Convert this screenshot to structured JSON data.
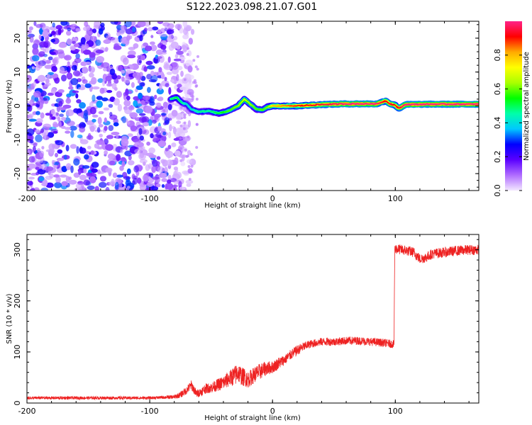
{
  "figure_title": "S122.2023.098.21.07.G01",
  "colors": {
    "snr_line": "#ee2222",
    "spectrogram_noise": "#7a1ee8",
    "frame": "#000000"
  },
  "chart_data": [
    {
      "type": "heatmap",
      "title": "",
      "xlabel": "Height of straight line (km)",
      "ylabel": "Frequency (Hz)",
      "xlim": [
        -200,
        168
      ],
      "ylim": [
        -25,
        25
      ],
      "xticks": [
        "-200",
        "-100",
        "0",
        "100"
      ],
      "yticks": [
        "20",
        "10",
        "0",
        "-10",
        "-20"
      ],
      "colorbar": {
        "label": "Normalized spectral amplitude",
        "range": [
          0.0,
          1.0
        ],
        "ticks": [
          "0.0",
          "0.2",
          "0.4",
          "0.6",
          "0.8"
        ],
        "colormap": [
          "#f3e8ff",
          "#b06cff",
          "#5a00ff",
          "#0000ff",
          "#00c8ff",
          "#00ffaa",
          "#00ff00",
          "#aaff00",
          "#ffff00",
          "#ffaa00",
          "#ff0000",
          "#ff2288"
        ]
      },
      "noise_region": {
        "x_range": [
          -200,
          -65
        ],
        "y_range": [
          -25,
          25
        ],
        "amplitude_range": [
          0.05,
          0.35
        ]
      },
      "signal_track": {
        "points": [
          {
            "x": -83,
            "y": 2.0
          },
          {
            "x": -78,
            "y": 2.5
          },
          {
            "x": -74,
            "y": 1.0
          },
          {
            "x": -70,
            "y": 0.5
          },
          {
            "x": -66,
            "y": -1.0
          },
          {
            "x": -60,
            "y": -1.8
          },
          {
            "x": -52,
            "y": -1.5
          },
          {
            "x": -44,
            "y": -2.2
          },
          {
            "x": -36,
            "y": -1.5
          },
          {
            "x": -28,
            "y": 0.0
          },
          {
            "x": -23,
            "y": 2.0
          },
          {
            "x": -18,
            "y": 0.5
          },
          {
            "x": -13,
            "y": -1.0
          },
          {
            "x": -8,
            "y": -1.2
          },
          {
            "x": -4,
            "y": -0.3
          },
          {
            "x": 0,
            "y": 0.0
          },
          {
            "x": 20,
            "y": 0.0
          },
          {
            "x": 40,
            "y": 0.4
          },
          {
            "x": 60,
            "y": 0.6
          },
          {
            "x": 85,
            "y": 0.6
          },
          {
            "x": 92,
            "y": 1.5
          },
          {
            "x": 96,
            "y": 0.6
          },
          {
            "x": 100,
            "y": 0.2
          },
          {
            "x": 103,
            "y": -0.8
          },
          {
            "x": 108,
            "y": 0.4
          },
          {
            "x": 130,
            "y": 0.5
          },
          {
            "x": 168,
            "y": 0.5
          }
        ],
        "amplitude": [
          0.45,
          0.5,
          0.45,
          0.4,
          0.4,
          0.45,
          0.45,
          0.5,
          0.55,
          0.6,
          0.65,
          0.6,
          0.55,
          0.55,
          0.6,
          0.75,
          0.85,
          0.9,
          0.95,
          0.95,
          0.85,
          0.9,
          0.85,
          0.9,
          0.95,
          0.95,
          0.95
        ]
      }
    },
    {
      "type": "line",
      "title": "",
      "xlabel": "Height of straight line (km)",
      "ylabel": "SNR (10 * v/v)",
      "xlim": [
        -200,
        168
      ],
      "ylim": [
        0,
        330
      ],
      "xticks": [
        "-200",
        "-100",
        "0",
        "100"
      ],
      "yticks": [
        "0",
        "100",
        "200",
        "300"
      ],
      "series": [
        {
          "x": [
            -200,
            -180,
            -160,
            -140,
            -120,
            -100,
            -90,
            -80,
            -75,
            -70,
            -66,
            -62,
            -58,
            -55,
            -50,
            -45,
            -40,
            -35,
            -30,
            -28,
            -25,
            -22,
            -20,
            -15,
            -10,
            -5,
            0,
            5,
            10,
            15,
            20,
            25,
            30,
            40,
            50,
            60,
            70,
            80,
            90,
            99,
            99.5,
            100,
            105,
            110,
            115,
            120,
            125,
            130,
            140,
            150,
            160,
            168
          ],
          "y": [
            10,
            10,
            10,
            10,
            10,
            10,
            11,
            12,
            16,
            25,
            35,
            18,
            22,
            28,
            30,
            35,
            40,
            48,
            55,
            60,
            52,
            50,
            45,
            55,
            62,
            68,
            70,
            78,
            85,
            95,
            103,
            110,
            115,
            120,
            120,
            122,
            122,
            120,
            118,
            115,
            300,
            302,
            300,
            298,
            295,
            282,
            285,
            292,
            295,
            298,
            300,
            300
          ],
          "noise": [
            3,
            3,
            3,
            3,
            3,
            3,
            3,
            4,
            6,
            8,
            10,
            8,
            8,
            10,
            10,
            12,
            14,
            16,
            20,
            20,
            18,
            18,
            16,
            16,
            16,
            14,
            12,
            12,
            10,
            10,
            10,
            9,
            8,
            8,
            8,
            8,
            8,
            8,
            8,
            8,
            10,
            10,
            10,
            10,
            10,
            10,
            10,
            10,
            10,
            10,
            10,
            10
          ]
        }
      ]
    }
  ]
}
